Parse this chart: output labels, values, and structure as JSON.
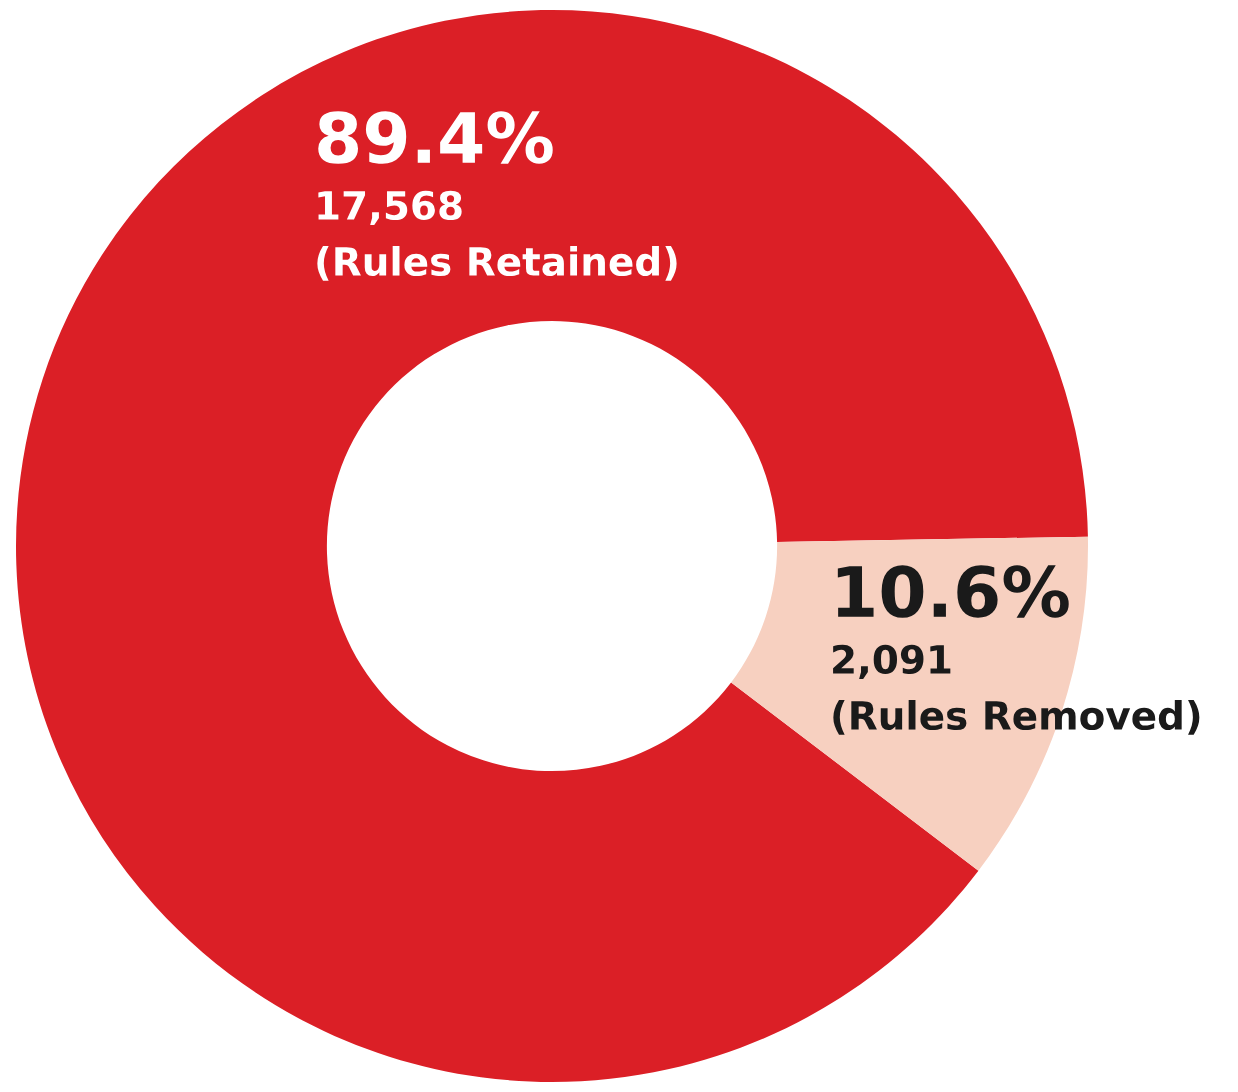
{
  "chart_data": {
    "type": "donut",
    "categories": [
      "(Rules Retained)",
      "(Rules Removed)"
    ],
    "values": [
      17568,
      2091
    ],
    "colors": [
      "#db1f26",
      "#f7d0c0"
    ],
    "value_labels": [
      "17,568",
      "2,091"
    ],
    "annotations": [
      "89.4%",
      "10.6%"
    ],
    "legend": false
  }
}
